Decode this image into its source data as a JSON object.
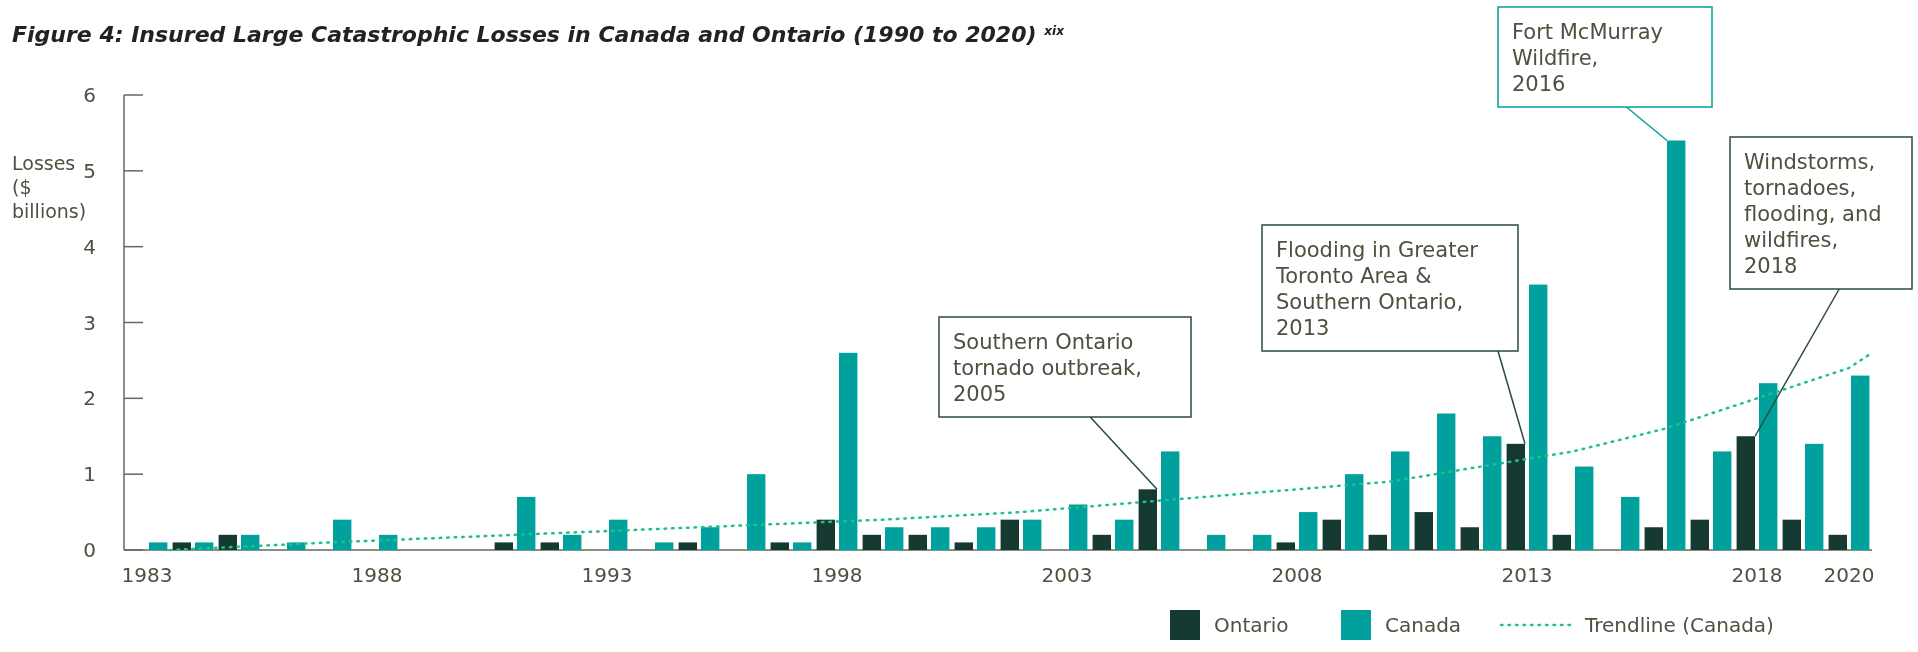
{
  "chart_data": {
    "type": "bar",
    "title": "Figure 4: Insured Large Catastrophic Losses in Canada and Ontario (1990 to 2020) $^{xix}$",
    "ylabel": "Losses ($ billions)",
    "x": [
      1983,
      1984,
      1985,
      1986,
      1987,
      1988,
      1989,
      1990,
      1991,
      1992,
      1993,
      1994,
      1995,
      1996,
      1997,
      1998,
      1999,
      2000,
      2001,
      2002,
      2003,
      2004,
      2005,
      2006,
      2007,
      2008,
      2009,
      2010,
      2011,
      2012,
      2013,
      2014,
      2015,
      2016,
      2017,
      2018,
      2019,
      2020
    ],
    "xlim": [
      1982.5,
      2020.5
    ],
    "xticks": [
      1983,
      1988,
      1993,
      1998,
      2003,
      2008,
      2013,
      2018,
      2020
    ],
    "ylim": [
      0,
      6
    ],
    "yticks": [
      0,
      1,
      2,
      3,
      4,
      5,
      6
    ],
    "series": [
      {
        "name": "Ontario",
        "color": "#163a32",
        "values": [
          null,
          0.1,
          0.2,
          null,
          null,
          null,
          null,
          null,
          0.1,
          0.1,
          null,
          null,
          0.1,
          null,
          0.1,
          0.4,
          0.2,
          0.2,
          0.1,
          0.4,
          null,
          0.2,
          0.8,
          null,
          null,
          0.1,
          0.4,
          0.2,
          0.5,
          0.3,
          1.4,
          0.2,
          null,
          0.3,
          0.4,
          1.5,
          0.4,
          0.2
        ]
      },
      {
        "name": "Canada",
        "color": "#00a19c",
        "values": [
          0.1,
          0.1,
          0.2,
          0.1,
          0.4,
          0.2,
          null,
          null,
          0.7,
          0.2,
          0.4,
          0.1,
          0.3,
          1.0,
          0.1,
          2.6,
          0.3,
          0.3,
          0.3,
          0.4,
          0.6,
          0.4,
          1.3,
          0.2,
          0.2,
          0.5,
          1.0,
          1.3,
          1.8,
          1.5,
          3.5,
          1.1,
          0.7,
          5.4,
          1.3,
          2.2,
          1.4,
          2.3
        ]
      },
      {
        "name": "Trendline (Canada)",
        "type": "line",
        "color": "#1fbf8f",
        "line_style": "dotted",
        "x": [
          1983.5,
          1987,
          1991,
          1995,
          1999,
          2002,
          2004,
          2006,
          2008,
          2010,
          2012,
          2014,
          2016,
          2018,
          2020,
          2020.5
        ],
        "values": [
          0.0,
          0.1,
          0.2,
          0.3,
          0.4,
          0.5,
          0.6,
          0.7,
          0.8,
          0.9,
          1.1,
          1.3,
          1.6,
          2.0,
          2.4,
          2.6
        ]
      }
    ],
    "legend": "bottom right",
    "annotations": [
      {
        "text": "Southern Ontario tornado outbreak, 2005",
        "x": 2005,
        "y": 0.8
      },
      {
        "text": "Flooding in Greater Toronto Area & Southern Ontario, 2013",
        "x": 2013,
        "y": 1.4
      },
      {
        "text": "Fort McMurray Wildfire, 2016",
        "x": 2016,
        "y": 5.4
      },
      {
        "text": "Windstorms, tornadoes, flooding, and wildfires, 2018",
        "x": 2018,
        "y": 1.5
      }
    ]
  }
}
